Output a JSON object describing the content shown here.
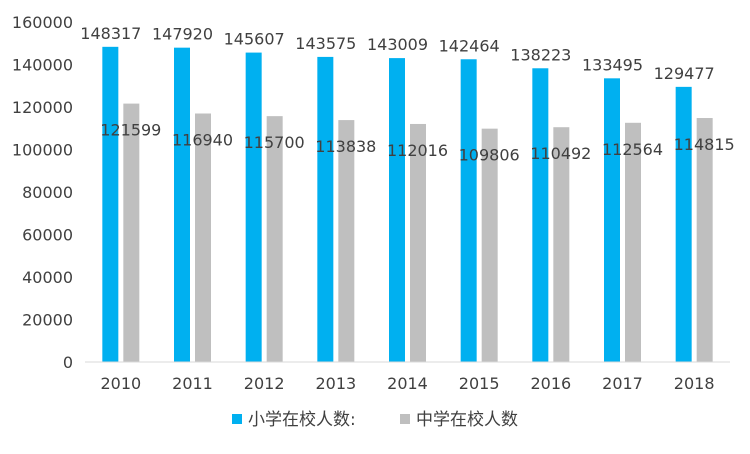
{
  "chart_data": {
    "type": "bar",
    "categories": [
      "2010",
      "2011",
      "2012",
      "2013",
      "2014",
      "2015",
      "2016",
      "2017",
      "2018"
    ],
    "series": [
      {
        "name": "小学在校人数:",
        "color": "#00b0f0",
        "values": [
          148317,
          147920,
          145607,
          143575,
          143009,
          142464,
          138223,
          133495,
          129477
        ]
      },
      {
        "name": "中学在校人数",
        "color": "#bfbfbf",
        "values": [
          121599,
          116940,
          115700,
          113838,
          112016,
          109806,
          110492,
          112564,
          114815
        ]
      }
    ],
    "yticks": [
      "0",
      "20000",
      "40000",
      "60000",
      "80000",
      "100000",
      "120000",
      "140000",
      "160000"
    ],
    "ylim": [
      0,
      160000
    ],
    "grid": false,
    "legend_position": "bottom"
  }
}
